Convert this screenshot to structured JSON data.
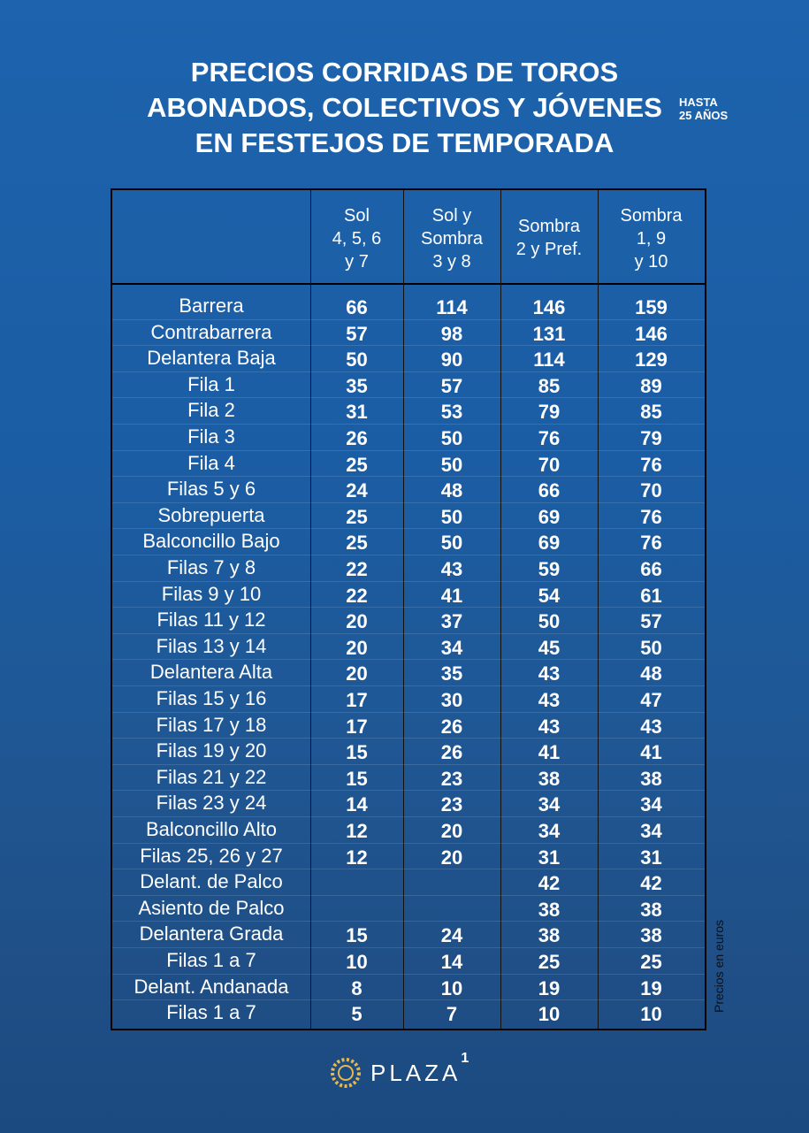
{
  "header": {
    "title_lines": [
      "PRECIOS CORRIDAS DE TOROS",
      "ABONADOS, COLECTIVOS Y JÓVENES",
      "EN FESTEJOS DE TEMPORADA"
    ],
    "note_lines": [
      "HASTA",
      "25 AÑOS"
    ]
  },
  "table": {
    "columns": [
      [
        "Sol",
        "4, 5, 6",
        "y 7"
      ],
      [
        "Sol y",
        "Sombra",
        "3 y 8"
      ],
      [
        "Sombra",
        "2 y Pref."
      ],
      [
        "Sombra",
        "1, 9",
        "y 10"
      ]
    ],
    "rows": [
      [
        "Barrera",
        66,
        114,
        146,
        159
      ],
      [
        "Contrabarrera",
        57,
        98,
        131,
        146
      ],
      [
        "Delantera Baja",
        50,
        90,
        114,
        129
      ],
      [
        "Fila 1",
        35,
        57,
        85,
        89
      ],
      [
        "Fila 2",
        31,
        53,
        79,
        85
      ],
      [
        "Fila 3",
        26,
        50,
        76,
        79
      ],
      [
        "Fila 4",
        25,
        50,
        70,
        76
      ],
      [
        "Filas 5 y 6",
        24,
        48,
        66,
        70
      ],
      [
        "Sobrepuerta",
        25,
        50,
        69,
        76
      ],
      [
        "Balconcillo Bajo",
        25,
        50,
        69,
        76
      ],
      [
        "Filas 7 y 8",
        22,
        43,
        59,
        66
      ],
      [
        "Filas 9 y 10",
        22,
        41,
        54,
        61
      ],
      [
        "Filas 11 y 12",
        20,
        37,
        50,
        57
      ],
      [
        "Filas 13 y 14",
        20,
        34,
        45,
        50
      ],
      [
        "Delantera Alta",
        20,
        35,
        43,
        48
      ],
      [
        "Filas 15 y 16",
        17,
        30,
        43,
        47
      ],
      [
        "Filas 17 y 18",
        17,
        26,
        43,
        43
      ],
      [
        "Filas 19 y 20",
        15,
        26,
        41,
        41
      ],
      [
        "Filas 21 y 22",
        15,
        23,
        38,
        38
      ],
      [
        "Filas 23 y 24",
        14,
        23,
        34,
        34
      ],
      [
        "Balconcillo Alto",
        12,
        20,
        34,
        34
      ],
      [
        "Filas 25, 26 y 27",
        12,
        20,
        31,
        31
      ],
      [
        "Delant. de Palco",
        null,
        null,
        42,
        42
      ],
      [
        "Asiento de Palco",
        null,
        null,
        38,
        38
      ],
      [
        "Delantera Grada",
        15,
        24,
        38,
        38
      ],
      [
        "Filas 1 a 7",
        10,
        14,
        25,
        25
      ],
      [
        "Delant. Andanada",
        8,
        10,
        19,
        19
      ],
      [
        "Filas 1 a 7",
        5,
        7,
        10,
        10
      ]
    ]
  },
  "side_note": "Precios en euros",
  "logo": {
    "text": "PLAZA",
    "sup": "1"
  }
}
